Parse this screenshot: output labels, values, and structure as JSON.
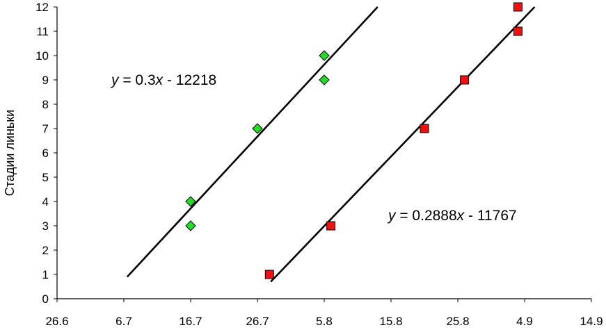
{
  "chart_data": {
    "type": "scatter",
    "title": "",
    "xlabel": "",
    "ylabel": "Стадии линьки",
    "ylim": [
      0,
      12
    ],
    "yticks": [
      0,
      1,
      2,
      3,
      4,
      5,
      6,
      7,
      8,
      9,
      10,
      11,
      12
    ],
    "x_tick_labels": [
      "26.6",
      "6.7",
      "16.7",
      "26.7",
      "5.8",
      "15.8",
      "25.8",
      "4.9",
      "14.9"
    ],
    "grid": false,
    "series": [
      {
        "marker": "diamond",
        "color": "#22dd22",
        "points": [
          {
            "x": 2.0,
            "y": 4
          },
          {
            "x": 2.0,
            "y": 3
          },
          {
            "x": 3.0,
            "y": 7
          },
          {
            "x": 4.0,
            "y": 10
          },
          {
            "x": 4.0,
            "y": 9
          }
        ],
        "trendline": {
          "x_start": 1.05,
          "y_start": 0.9,
          "x_end": 4.8,
          "y_end": 12
        },
        "equation": {
          "lhs": "y",
          "eq": " = 0.3",
          "var": "x",
          "rhs": " - 12218"
        }
      },
      {
        "marker": "square",
        "color": "#ee1111",
        "points": [
          {
            "x": 3.18,
            "y": 1
          },
          {
            "x": 4.1,
            "y": 3
          },
          {
            "x": 5.5,
            "y": 7
          },
          {
            "x": 6.1,
            "y": 9
          },
          {
            "x": 6.9,
            "y": 11
          },
          {
            "x": 6.9,
            "y": 12
          }
        ],
        "trendline": {
          "x_start": 3.2,
          "y_start": 0.7,
          "x_end": 7.15,
          "y_end": 12
        },
        "equation": {
          "lhs": "y",
          "eq": " = 0.2888",
          "var": "x",
          "rhs": " - 11767"
        }
      }
    ]
  }
}
